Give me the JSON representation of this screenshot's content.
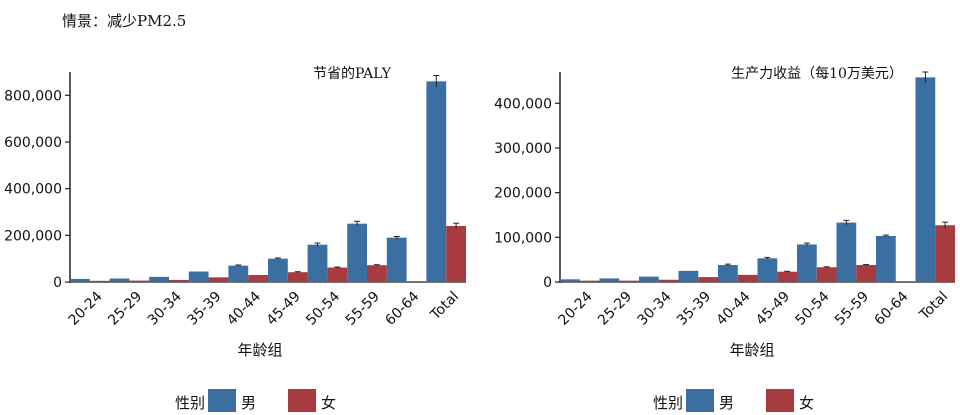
{
  "scenario_label": "情景：减少PM2.5",
  "colors": {
    "male": "#3c6fa1",
    "female": "#a83b3f",
    "axis": "#222222",
    "error": "#222222"
  },
  "chart_data": [
    {
      "type": "bar",
      "title": "节省的PALY",
      "xlabel": "年龄组",
      "ylabel": "",
      "categories": [
        "20-24",
        "25-29",
        "30-34",
        "35-39",
        "40-44",
        "45-49",
        "50-54",
        "55-59",
        "60-64",
        "Total"
      ],
      "series": [
        {
          "name": "男",
          "values": [
            13000,
            15000,
            22000,
            45000,
            70000,
            100000,
            160000,
            250000,
            190000,
            860000
          ],
          "errors": [
            0,
            0,
            0,
            0,
            3000,
            3000,
            7000,
            10000,
            5000,
            25000
          ]
        },
        {
          "name": "女",
          "values": [
            5000,
            6000,
            9000,
            20000,
            30000,
            42000,
            62000,
            72000,
            0,
            240000
          ],
          "errors": [
            0,
            0,
            0,
            0,
            0,
            2000,
            2000,
            2000,
            0,
            12000
          ]
        }
      ],
      "ylim": [
        0,
        900000
      ],
      "yticks": [
        0,
        200000,
        400000,
        600000,
        800000
      ],
      "ytick_labels": [
        "0",
        "200,000",
        "400,000",
        "600,000",
        "800,000"
      ],
      "legend": {
        "title": "性别",
        "placement": "bottom",
        "labels": [
          "男",
          "女"
        ]
      }
    },
    {
      "type": "bar",
      "title": "生产力收益（每10万美元）",
      "xlabel": "年龄组",
      "ylabel": "",
      "categories": [
        "20-24",
        "25-29",
        "30-34",
        "35-39",
        "40-44",
        "45-49",
        "50-54",
        "55-59",
        "60-64",
        "Total"
      ],
      "series": [
        {
          "name": "男",
          "values": [
            6000,
            8000,
            12000,
            25000,
            38000,
            53000,
            84000,
            133000,
            103000,
            458000
          ],
          "errors": [
            0,
            0,
            0,
            0,
            2000,
            2000,
            3000,
            5000,
            2000,
            12000
          ]
        },
        {
          "name": "女",
          "values": [
            3000,
            3000,
            5000,
            11000,
            16000,
            23000,
            33000,
            38000,
            0,
            127000
          ],
          "errors": [
            0,
            0,
            0,
            0,
            0,
            1000,
            1000,
            1000,
            0,
            7000
          ]
        }
      ],
      "ylim": [
        0,
        470000
      ],
      "yticks": [
        0,
        100000,
        200000,
        300000,
        400000
      ],
      "ytick_labels": [
        "0",
        "100,000",
        "200,000",
        "300,000",
        "400,000"
      ],
      "legend": {
        "title": "性别",
        "placement": "bottom",
        "labels": [
          "男",
          "女"
        ]
      }
    }
  ]
}
